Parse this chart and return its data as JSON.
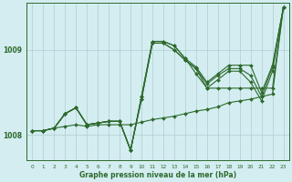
{
  "title": "Graphe pression niveau de la mer (hPa)",
  "bg_color": "#d4edf0",
  "grid_color": "#aecdd4",
  "line_color": "#2d6a2d",
  "xlim": [
    -0.5,
    23.5
  ],
  "ylim": [
    1007.7,
    1009.55
  ],
  "xticks": [
    0,
    1,
    2,
    3,
    4,
    5,
    6,
    7,
    8,
    9,
    10,
    11,
    12,
    13,
    14,
    15,
    16,
    17,
    18,
    19,
    20,
    21,
    22,
    23
  ],
  "yticks": [
    1008,
    1009
  ],
  "series": [
    [
      1008.05,
      1008.05,
      1008.08,
      1008.1,
      1008.12,
      1008.1,
      1008.12,
      1008.12,
      1008.12,
      1008.12,
      1008.15,
      1008.18,
      1008.2,
      1008.22,
      1008.25,
      1008.28,
      1008.3,
      1008.33,
      1008.38,
      1008.4,
      1008.42,
      1008.45,
      1008.48,
      1009.5
    ],
    [
      1008.05,
      1008.05,
      1008.08,
      1008.25,
      1008.32,
      1008.12,
      1008.14,
      1008.16,
      1008.16,
      1007.82,
      1008.42,
      1009.08,
      1009.08,
      1009.0,
      1008.88,
      1008.78,
      1008.55,
      1008.55,
      1008.55,
      1008.55,
      1008.55,
      1008.55,
      1008.55,
      1009.5
    ],
    [
      1008.05,
      1008.05,
      1008.08,
      1008.25,
      1008.32,
      1008.12,
      1008.14,
      1008.16,
      1008.16,
      1007.82,
      1008.42,
      1009.08,
      1009.08,
      1009.0,
      1008.88,
      1008.78,
      1008.6,
      1008.7,
      1008.78,
      1008.78,
      1008.7,
      1008.45,
      1008.8,
      1009.5
    ],
    [
      1008.05,
      1008.05,
      1008.08,
      1008.25,
      1008.32,
      1008.12,
      1008.14,
      1008.16,
      1008.16,
      1007.82,
      1008.45,
      1009.1,
      1009.1,
      1009.05,
      1008.9,
      1008.8,
      1008.62,
      1008.72,
      1008.82,
      1008.82,
      1008.82,
      1008.5,
      1008.82,
      1009.5
    ],
    [
      1008.05,
      1008.05,
      1008.08,
      1008.25,
      1008.32,
      1008.12,
      1008.14,
      1008.16,
      1008.16,
      1007.82,
      1008.45,
      1009.1,
      1009.1,
      1009.05,
      1008.9,
      1008.72,
      1008.55,
      1008.65,
      1008.75,
      1008.75,
      1008.62,
      1008.4,
      1008.75,
      1009.5
    ]
  ],
  "marker": "D",
  "marker_size": 2.0,
  "linewidth": 0.8
}
